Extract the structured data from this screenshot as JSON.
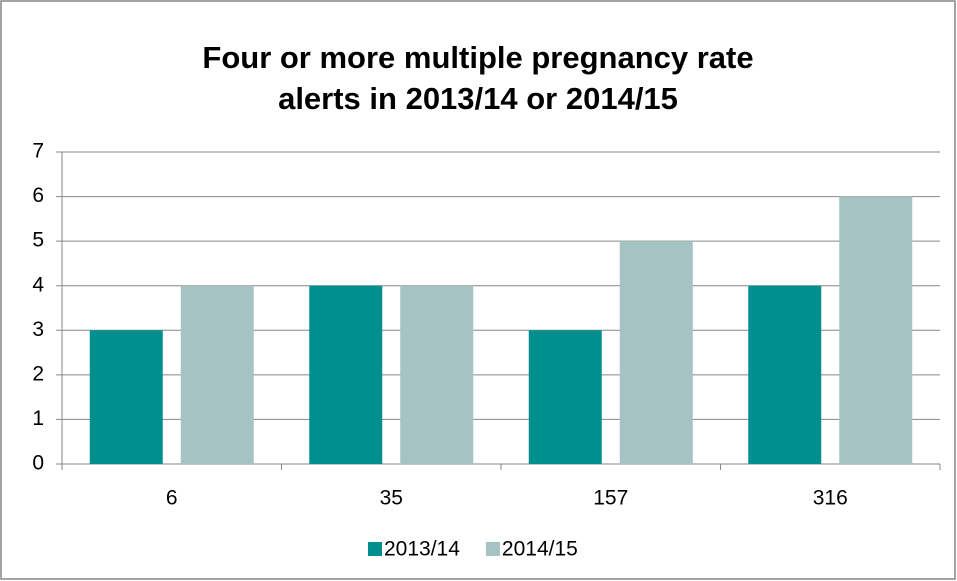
{
  "chart_data": {
    "type": "bar",
    "title": [
      "Four or more multiple pregnancy rate",
      "alerts in 2013/14 or 2014/15"
    ],
    "categories": [
      "6",
      "35",
      "157",
      "316"
    ],
    "series": [
      {
        "name": "2013/14",
        "color": "#008f8f",
        "values": [
          3,
          4,
          3,
          4
        ]
      },
      {
        "name": "2014/15",
        "color": "#a5c3c3",
        "values": [
          4,
          4,
          5,
          6
        ]
      }
    ],
    "ylim": [
      0,
      7
    ],
    "yticks": [
      0,
      1,
      2,
      3,
      4,
      5,
      6,
      7
    ],
    "grid": true,
    "legend": "bottom"
  }
}
